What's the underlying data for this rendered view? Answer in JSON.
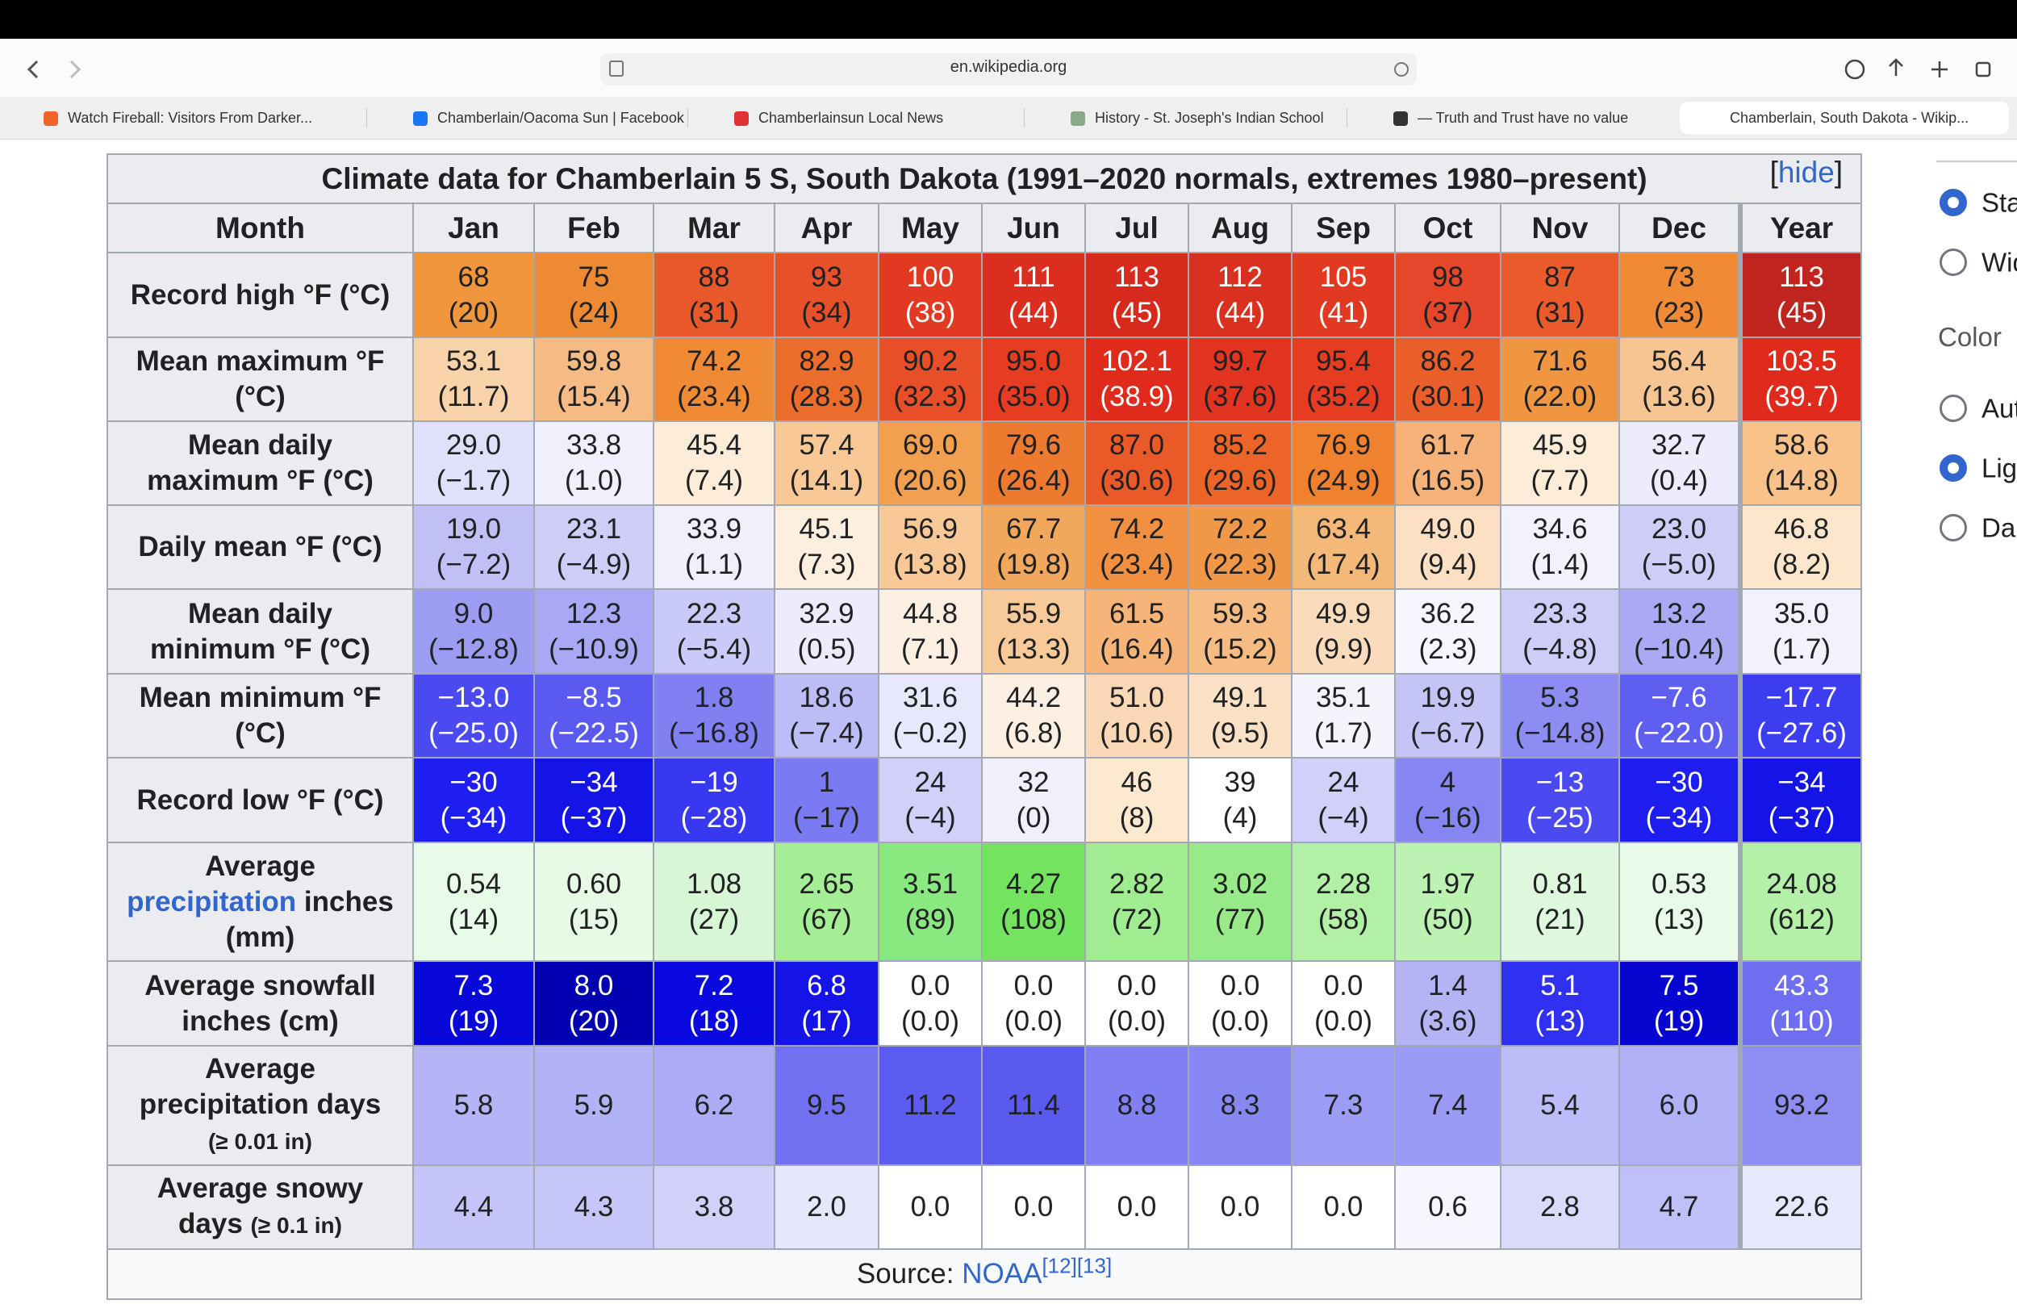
{
  "browser": {
    "url": "en.wikipedia.org",
    "tabs": [
      "Watch Fireball: Visitors From Darker...",
      "Chamberlain/Oacoma Sun | Facebook",
      "Chamberlainsun Local News",
      "History - St. Joseph's Indian School",
      "— Truth and Trust have no value",
      "Chamberlain, South Dakota - Wikip..."
    ],
    "active_tab": 5
  },
  "table": {
    "title": "Climate data for Chamberlain 5 S, South Dakota (1991–2020 normals, extremes 1980–present)",
    "hide": {
      "open": "[",
      "text": "hide",
      "close": "]"
    },
    "header": [
      "Month",
      "Jan",
      "Feb",
      "Mar",
      "Apr",
      "May",
      "Jun",
      "Jul",
      "Aug",
      "Sep",
      "Oct",
      "Nov",
      "Dec",
      "Year"
    ],
    "rows": [
      {
        "label": [
          {
            "text": "Record high °F (°C)"
          }
        ],
        "cells": [
          {
            "text": "68\n(20)",
            "bg": "#f0973d"
          },
          {
            "text": "75\n(24)",
            "bg": "#ee8a33"
          },
          {
            "text": "88\n(31)",
            "bg": "#e8582a"
          },
          {
            "text": "93\n(34)",
            "bg": "#e8502a"
          },
          {
            "text": "100\n(38)",
            "bg": "#e23a22",
            "fg": "#ffffff"
          },
          {
            "text": "111\n(44)",
            "bg": "#dc2e1e",
            "fg": "#ffffff"
          },
          {
            "text": "113\n(45)",
            "bg": "#d62a1c",
            "fg": "#ffffff"
          },
          {
            "text": "112\n(44)",
            "bg": "#d93020",
            "fg": "#ffffff"
          },
          {
            "text": "105\n(41)",
            "bg": "#e23a22",
            "fg": "#ffffff"
          },
          {
            "text": "98\n(37)",
            "bg": "#e6462a"
          },
          {
            "text": "87\n(31)",
            "bg": "#ea5a2a"
          },
          {
            "text": "73\n(23)",
            "bg": "#f08a35"
          },
          {
            "text": "113\n(45)",
            "bg": "#c0241e",
            "fg": "#ffffff"
          }
        ]
      },
      {
        "label": [
          {
            "text": "Mean maximum °F\n(°C)"
          }
        ],
        "cells": [
          {
            "text": "53.1\n(11.7)",
            "bg": "#f8d2a8"
          },
          {
            "text": "59.8\n(15.4)",
            "bg": "#f6bb84"
          },
          {
            "text": "74.2\n(23.4)",
            "bg": "#f08a35"
          },
          {
            "text": "82.9\n(28.3)",
            "bg": "#ec6c2c"
          },
          {
            "text": "90.2\n(32.3)",
            "bg": "#e84e28"
          },
          {
            "text": "95.0\n(35.0)",
            "bg": "#e63c22"
          },
          {
            "text": "102.1\n(38.9)",
            "bg": "#e02a1c",
            "fg": "#ffffff"
          },
          {
            "text": "99.7\n(37.6)",
            "bg": "#e23420"
          },
          {
            "text": "95.4\n(35.2)",
            "bg": "#e63c22"
          },
          {
            "text": "86.2\n(30.1)",
            "bg": "#ea5e2a"
          },
          {
            "text": "71.6\n(22.0)",
            "bg": "#f09640"
          },
          {
            "text": "56.4\n(13.6)",
            "bg": "#f6c592"
          },
          {
            "text": "103.5\n(39.7)",
            "bg": "#e02a1c",
            "fg": "#ffffff"
          }
        ]
      },
      {
        "label": [
          {
            "text": "Mean daily\nmaximum °F (°C)"
          }
        ],
        "cells": [
          {
            "text": "29.0\n(−1.7)",
            "bg": "#e0e0fa"
          },
          {
            "text": "33.8\n(1.0)",
            "bg": "#f0f0fc"
          },
          {
            "text": "45.4\n(7.4)",
            "bg": "#fdecd8"
          },
          {
            "text": "57.4\n(14.1)",
            "bg": "#f8c896"
          },
          {
            "text": "69.0\n(20.6)",
            "bg": "#f2a050"
          },
          {
            "text": "79.6\n(26.4)",
            "bg": "#ee7a30"
          },
          {
            "text": "87.0\n(30.6)",
            "bg": "#ea5a28"
          },
          {
            "text": "85.2\n(29.6)",
            "bg": "#ec6428"
          },
          {
            "text": "76.9\n(24.9)",
            "bg": "#f0822f"
          },
          {
            "text": "61.7\n(16.5)",
            "bg": "#f6b278"
          },
          {
            "text": "45.9\n(7.7)",
            "bg": "#fdecd8"
          },
          {
            "text": "32.7\n(0.4)",
            "bg": "#ececfc"
          },
          {
            "text": "58.6\n(14.8)",
            "bg": "#f8c28a"
          }
        ]
      },
      {
        "label": [
          {
            "text": "Daily mean °F (°C)"
          }
        ],
        "cells": [
          {
            "text": "19.0\n(−7.2)",
            "bg": "#c0c0f6"
          },
          {
            "text": "23.1\n(−4.9)",
            "bg": "#cdcdf8"
          },
          {
            "text": "33.9\n(1.1)",
            "bg": "#f0f0fc"
          },
          {
            "text": "45.1\n(7.3)",
            "bg": "#fdeede"
          },
          {
            "text": "56.9\n(13.8)",
            "bg": "#f8c896"
          },
          {
            "text": "67.7\n(19.8)",
            "bg": "#f2a85c"
          },
          {
            "text": "74.2\n(23.4)",
            "bg": "#f09040"
          },
          {
            "text": "72.2\n(22.3)",
            "bg": "#f09848"
          },
          {
            "text": "63.4\n(17.4)",
            "bg": "#f4b878"
          },
          {
            "text": "49.0\n(9.4)",
            "bg": "#fde0c4"
          },
          {
            "text": "34.6\n(1.4)",
            "bg": "#f2f2fc"
          },
          {
            "text": "23.0\n(−5.0)",
            "bg": "#cdcdf8"
          },
          {
            "text": "46.8\n(8.2)",
            "bg": "#fde6cc"
          }
        ]
      },
      {
        "label": [
          {
            "text": "Mean daily\nminimum °F (°C)"
          }
        ],
        "cells": [
          {
            "text": "9.0\n(−12.8)",
            "bg": "#9c9cf2"
          },
          {
            "text": "12.3\n(−10.9)",
            "bg": "#a8a8f4"
          },
          {
            "text": "22.3\n(−5.4)",
            "bg": "#cacaf8"
          },
          {
            "text": "32.9\n(0.5)",
            "bg": "#ececfc"
          },
          {
            "text": "44.8\n(7.1)",
            "bg": "#fdf0e2"
          },
          {
            "text": "55.9\n(13.3)",
            "bg": "#f8ca9a"
          },
          {
            "text": "61.5\n(16.4)",
            "bg": "#f6b478"
          },
          {
            "text": "59.3\n(15.2)",
            "bg": "#f6bc84"
          },
          {
            "text": "49.9\n(9.9)",
            "bg": "#fadcbc"
          },
          {
            "text": "36.2\n(2.3)",
            "bg": "#f6f6fe"
          },
          {
            "text": "23.3\n(−4.8)",
            "bg": "#cdcdf8"
          },
          {
            "text": "13.2\n(−10.4)",
            "bg": "#aaaaf4"
          },
          {
            "text": "35.0\n(1.7)",
            "bg": "#f2f2fc"
          }
        ]
      },
      {
        "label": [
          {
            "text": "Mean minimum °F\n(°C)"
          }
        ],
        "cells": [
          {
            "text": "−13.0\n(−25.0)",
            "bg": "#4a4af0",
            "fg": "#ffffff"
          },
          {
            "text": "−8.5\n(−22.5)",
            "bg": "#5a5af0",
            "fg": "#ffffff"
          },
          {
            "text": "1.8\n(−16.8)",
            "bg": "#8080f2"
          },
          {
            "text": "18.6\n(−7.4)",
            "bg": "#bcbcf6"
          },
          {
            "text": "31.6\n(−0.2)",
            "bg": "#e8e8fc"
          },
          {
            "text": "44.2\n(6.8)",
            "bg": "#fdf0e2"
          },
          {
            "text": "51.0\n(10.6)",
            "bg": "#fad8b6"
          },
          {
            "text": "49.1\n(9.5)",
            "bg": "#fae0c4"
          },
          {
            "text": "35.1\n(1.7)",
            "bg": "#f4f4fc"
          },
          {
            "text": "19.9\n(−6.7)",
            "bg": "#c4c4f6"
          },
          {
            "text": "5.3\n(−14.8)",
            "bg": "#8c8cf2"
          },
          {
            "text": "−7.6\n(−22.0)",
            "bg": "#5e5ef0",
            "fg": "#ffffff"
          },
          {
            "text": "−17.7\n(−27.6)",
            "bg": "#3c3cf0",
            "fg": "#ffffff"
          }
        ]
      },
      {
        "label": [
          {
            "text": "Record low °F (°C)"
          }
        ],
        "cells": [
          {
            "text": "−30\n(−34)",
            "bg": "#1e1ef0",
            "fg": "#ffffff"
          },
          {
            "text": "−34\n(−37)",
            "bg": "#1414e6",
            "fg": "#ffffff"
          },
          {
            "text": "−19\n(−28)",
            "bg": "#3838f0",
            "fg": "#ffffff"
          },
          {
            "text": "1\n(−17)",
            "bg": "#7a7af2"
          },
          {
            "text": "24\n(−4)",
            "bg": "#d0d0f8"
          },
          {
            "text": "32\n(0)",
            "bg": "#f0f0fc"
          },
          {
            "text": "46\n(8)",
            "bg": "#fde8d0"
          },
          {
            "text": "39\n(4)",
            "bg": "#ffffff"
          },
          {
            "text": "24\n(−4)",
            "bg": "#d0d0f8"
          },
          {
            "text": "4\n(−16)",
            "bg": "#8686f2"
          },
          {
            "text": "−13\n(−25)",
            "bg": "#4a4af0",
            "fg": "#ffffff"
          },
          {
            "text": "−30\n(−34)",
            "bg": "#1e1ef0",
            "fg": "#ffffff"
          },
          {
            "text": "−34\n(−37)",
            "bg": "#1414e6",
            "fg": "#ffffff"
          }
        ]
      },
      {
        "label": [
          {
            "text": "Average\n"
          },
          {
            "text": "precipitation",
            "style": "link"
          },
          {
            "text": " inches\n(mm)"
          }
        ],
        "cells": [
          {
            "text": "0.54\n(14)",
            "bg": "#e8fae8"
          },
          {
            "text": "0.60\n(15)",
            "bg": "#e6fae6"
          },
          {
            "text": "1.08\n(27)",
            "bg": "#d6f6d6"
          },
          {
            "text": "2.65\n(67)",
            "bg": "#a6ee96"
          },
          {
            "text": "3.51\n(89)",
            "bg": "#8ae880"
          },
          {
            "text": "4.27\n(108)",
            "bg": "#74e460"
          },
          {
            "text": "2.82\n(72)",
            "bg": "#a0ec90"
          },
          {
            "text": "3.02\n(77)",
            "bg": "#98ea88"
          },
          {
            "text": "2.28\n(58)",
            "bg": "#b2f0a6"
          },
          {
            "text": "1.97\n(50)",
            "bg": "#bcf2b2"
          },
          {
            "text": "0.81\n(21)",
            "bg": "#ddf8dd"
          },
          {
            "text": "0.53\n(13)",
            "bg": "#e8fae8"
          },
          {
            "text": "24.08\n(612)",
            "bg": "#b4f0a8"
          }
        ]
      },
      {
        "label": [
          {
            "text": "Average snowfall\ninches (cm)"
          }
        ],
        "cells": [
          {
            "text": "7.3\n(19)",
            "bg": "#0808d8",
            "fg": "#ffffff"
          },
          {
            "text": "8.0\n(20)",
            "bg": "#0000b0",
            "fg": "#ffffff"
          },
          {
            "text": "7.2\n(18)",
            "bg": "#0a0ae0",
            "fg": "#ffffff"
          },
          {
            "text": "6.8\n(17)",
            "bg": "#1414e8",
            "fg": "#ffffff"
          },
          {
            "text": "0.0\n(0.0)",
            "bg": "#ffffff"
          },
          {
            "text": "0.0\n(0.0)",
            "bg": "#ffffff"
          },
          {
            "text": "0.0\n(0.0)",
            "bg": "#ffffff"
          },
          {
            "text": "0.0\n(0.0)",
            "bg": "#ffffff"
          },
          {
            "text": "0.0\n(0.0)",
            "bg": "#ffffff"
          },
          {
            "text": "1.4\n(3.6)",
            "bg": "#b4b4f4"
          },
          {
            "text": "5.1\n(13)",
            "bg": "#3030f0",
            "fg": "#ffffff"
          },
          {
            "text": "7.5\n(19)",
            "bg": "#0606d0",
            "fg": "#ffffff"
          },
          {
            "text": "43.3\n(110)",
            "bg": "#6e6ef0",
            "fg": "#ffffff"
          }
        ]
      },
      {
        "label": [
          {
            "text": "Average\nprecipitation days\n"
          },
          {
            "text": "(≥ 0.01 in)",
            "style": "small"
          }
        ],
        "cells": [
          {
            "text": "5.8",
            "bg": "#b4b4f6"
          },
          {
            "text": "5.9",
            "bg": "#b2b2f6"
          },
          {
            "text": "6.2",
            "bg": "#ababf6"
          },
          {
            "text": "9.5",
            "bg": "#7070f0"
          },
          {
            "text": "11.2",
            "bg": "#5c5cf0"
          },
          {
            "text": "11.4",
            "bg": "#5a5aee"
          },
          {
            "text": "8.8",
            "bg": "#8080f2"
          },
          {
            "text": "8.3",
            "bg": "#8888f2"
          },
          {
            "text": "7.3",
            "bg": "#9c9cf4"
          },
          {
            "text": "7.4",
            "bg": "#9a9af4"
          },
          {
            "text": "5.4",
            "bg": "#bcbcf8"
          },
          {
            "text": "6.0",
            "bg": "#b0b0f6"
          },
          {
            "text": "93.2",
            "bg": "#8e8ef2"
          }
        ]
      },
      {
        "label": [
          {
            "text": "Average snowy\ndays "
          },
          {
            "text": "(≥ 0.1 in)",
            "style": "small"
          }
        ],
        "cells": [
          {
            "text": "4.4",
            "bg": "#c4c4f8"
          },
          {
            "text": "4.3",
            "bg": "#c6c6f8"
          },
          {
            "text": "3.8",
            "bg": "#d0d0f8"
          },
          {
            "text": "2.0",
            "bg": "#e6e6fc"
          },
          {
            "text": "0.0",
            "bg": "#ffffff"
          },
          {
            "text": "0.0",
            "bg": "#ffffff"
          },
          {
            "text": "0.0",
            "bg": "#ffffff"
          },
          {
            "text": "0.0",
            "bg": "#ffffff"
          },
          {
            "text": "0.0",
            "bg": "#ffffff"
          },
          {
            "text": "0.6",
            "bg": "#f6f6fe"
          },
          {
            "text": "2.8",
            "bg": "#dadafa"
          },
          {
            "text": "4.7",
            "bg": "#c0c0f8"
          },
          {
            "text": "22.6",
            "bg": "#e8e8fc"
          }
        ]
      }
    ],
    "source": {
      "label": "Source:",
      "link": "NOAA",
      "refs": [
        "[12]",
        "[13]"
      ]
    }
  },
  "sidebar": {
    "width_options": [
      "Standard",
      "Wide"
    ],
    "width_selected": 0,
    "color_heading": "Color",
    "color_options": [
      "Automatic",
      "Light",
      "Dark"
    ],
    "color_selected": 1
  }
}
